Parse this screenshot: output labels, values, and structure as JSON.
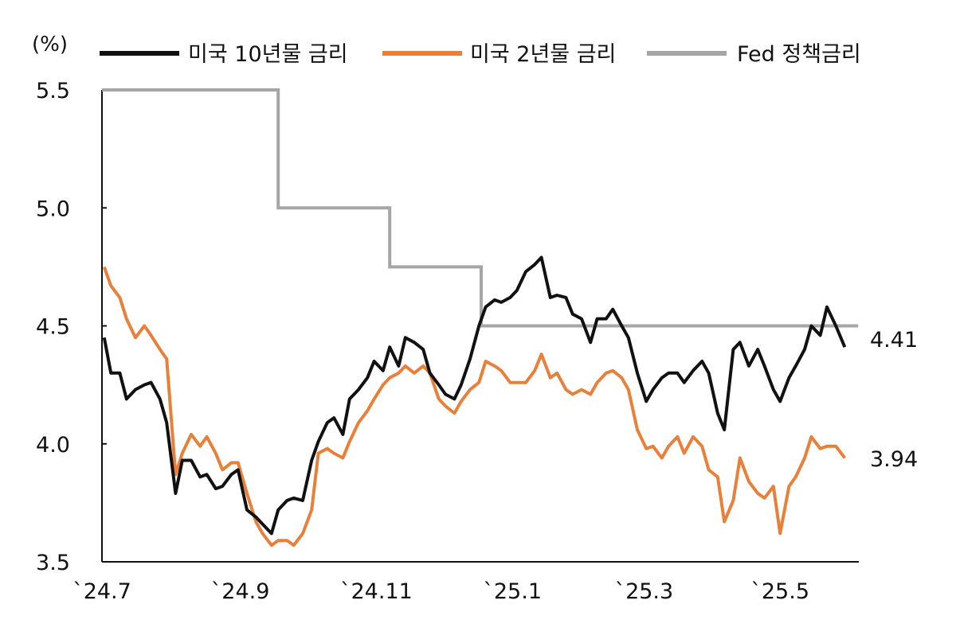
{
  "chart_data": {
    "type": "line",
    "unit_label": "(%)",
    "ylim": [
      3.5,
      5.5
    ],
    "yticks": [
      "5.5",
      "5.0",
      "4.5",
      "4.0",
      "3.5"
    ],
    "ytick_values": [
      5.5,
      5.0,
      4.5,
      4.0,
      3.5
    ],
    "xlim": [
      "2024-07-01",
      "2025-05-30"
    ],
    "xticks": [
      {
        "label": "`24.7",
        "date": "2024-07-01"
      },
      {
        "label": "`24.9",
        "date": "2024-09-01"
      },
      {
        "label": "`24.11",
        "date": "2024-11-01"
      },
      {
        "label": "`25.1",
        "date": "2025-01-01"
      },
      {
        "label": "`25.3",
        "date": "2025-03-01"
      },
      {
        "label": "`25.5",
        "date": "2025-05-01"
      }
    ],
    "grid": false,
    "legend_position": "top",
    "x": [
      "2024-07-02",
      "2024-07-05",
      "2024-07-09",
      "2024-07-12",
      "2024-07-16",
      "2024-07-20",
      "2024-07-23",
      "2024-07-27",
      "2024-07-30",
      "2024-08-03",
      "2024-08-06",
      "2024-08-10",
      "2024-08-14",
      "2024-08-17",
      "2024-08-21",
      "2024-08-24",
      "2024-08-28",
      "2024-08-31",
      "2024-09-04",
      "2024-09-08",
      "2024-09-11",
      "2024-09-15",
      "2024-09-18",
      "2024-09-22",
      "2024-09-25",
      "2024-09-29",
      "2024-10-03",
      "2024-10-06",
      "2024-10-10",
      "2024-10-13",
      "2024-10-17",
      "2024-10-20",
      "2024-10-24",
      "2024-10-28",
      "2024-10-31",
      "2024-11-04",
      "2024-11-07",
      "2024-11-11",
      "2024-11-14",
      "2024-11-18",
      "2024-11-22",
      "2024-11-25",
      "2024-11-29",
      "2024-12-02",
      "2024-12-06",
      "2024-12-09",
      "2024-12-13",
      "2024-12-17",
      "2024-12-20",
      "2024-12-24",
      "2024-12-27",
      "2024-12-31",
      "2025-01-03",
      "2025-01-07",
      "2025-01-11",
      "2025-01-14",
      "2025-01-18",
      "2025-01-21",
      "2025-01-25",
      "2025-01-28",
      "2025-02-01",
      "2025-02-05",
      "2025-02-08",
      "2025-02-12",
      "2025-02-15",
      "2025-02-19",
      "2025-02-22",
      "2025-02-26",
      "2025-03-02",
      "2025-03-05",
      "2025-03-09",
      "2025-03-12",
      "2025-03-16",
      "2025-03-19",
      "2025-03-23",
      "2025-03-27",
      "2025-03-30",
      "2025-04-03",
      "2025-04-06",
      "2025-04-10",
      "2025-04-13",
      "2025-04-17",
      "2025-04-21",
      "2025-04-24",
      "2025-04-28",
      "2025-05-01",
      "2025-05-05",
      "2025-05-08",
      "2025-05-12",
      "2025-05-15",
      "2025-05-19",
      "2025-05-22",
      "2025-05-26",
      "2025-05-30"
    ],
    "series": [
      {
        "name": "미국 10년물 금리",
        "color": "#111111",
        "end_label": "4.41",
        "values": [
          4.45,
          4.3,
          4.3,
          4.19,
          4.23,
          4.25,
          4.26,
          4.19,
          4.09,
          3.79,
          3.93,
          3.93,
          3.86,
          3.87,
          3.81,
          3.82,
          3.87,
          3.89,
          3.72,
          3.69,
          3.66,
          3.62,
          3.72,
          3.76,
          3.77,
          3.76,
          3.93,
          4.01,
          4.09,
          4.11,
          4.04,
          4.19,
          4.23,
          4.28,
          4.35,
          4.31,
          4.41,
          4.33,
          4.45,
          4.43,
          4.4,
          4.3,
          4.25,
          4.21,
          4.19,
          4.25,
          4.36,
          4.5,
          4.58,
          4.61,
          4.6,
          4.62,
          4.65,
          4.73,
          4.76,
          4.79,
          4.62,
          4.63,
          4.62,
          4.55,
          4.53,
          4.43,
          4.53,
          4.53,
          4.57,
          4.5,
          4.45,
          4.3,
          4.18,
          4.23,
          4.28,
          4.3,
          4.3,
          4.26,
          4.31,
          4.35,
          4.3,
          4.13,
          4.06,
          4.4,
          4.43,
          4.33,
          4.4,
          4.33,
          4.23,
          4.18,
          4.28,
          4.33,
          4.4,
          4.5,
          4.46,
          4.58,
          4.5,
          4.41
        ]
      },
      {
        "name": "미국 2년물 금리",
        "color": "#E8803A",
        "end_label": "3.94",
        "values": [
          4.75,
          4.67,
          4.62,
          4.53,
          4.45,
          4.5,
          4.46,
          4.4,
          4.36,
          3.87,
          3.96,
          4.04,
          3.99,
          4.03,
          3.96,
          3.89,
          3.92,
          3.92,
          3.79,
          3.67,
          3.62,
          3.57,
          3.59,
          3.59,
          3.57,
          3.62,
          3.72,
          3.96,
          3.98,
          3.96,
          3.94,
          4.01,
          4.09,
          4.14,
          4.19,
          4.25,
          4.28,
          4.3,
          4.33,
          4.3,
          4.33,
          4.3,
          4.19,
          4.16,
          4.13,
          4.18,
          4.23,
          4.26,
          4.35,
          4.33,
          4.31,
          4.26,
          4.26,
          4.26,
          4.31,
          4.38,
          4.28,
          4.3,
          4.23,
          4.21,
          4.23,
          4.21,
          4.26,
          4.3,
          4.31,
          4.28,
          4.23,
          4.06,
          3.98,
          3.99,
          3.94,
          3.99,
          4.03,
          3.96,
          4.03,
          3.99,
          3.89,
          3.86,
          3.67,
          3.76,
          3.94,
          3.84,
          3.79,
          3.77,
          3.82,
          3.62,
          3.82,
          3.86,
          3.94,
          4.03,
          3.98,
          3.99,
          3.99,
          3.94
        ]
      },
      {
        "name": "Fed 정책금리",
        "color": "#A6A6A6",
        "step": true,
        "steps": [
          {
            "date": "2024-07-01",
            "value": 5.5
          },
          {
            "date": "2024-09-18",
            "value": 5.0
          },
          {
            "date": "2024-11-07",
            "value": 4.75
          },
          {
            "date": "2024-12-18",
            "value": 4.5
          },
          {
            "date": "2025-06-05",
            "value": 4.5
          }
        ]
      }
    ]
  }
}
